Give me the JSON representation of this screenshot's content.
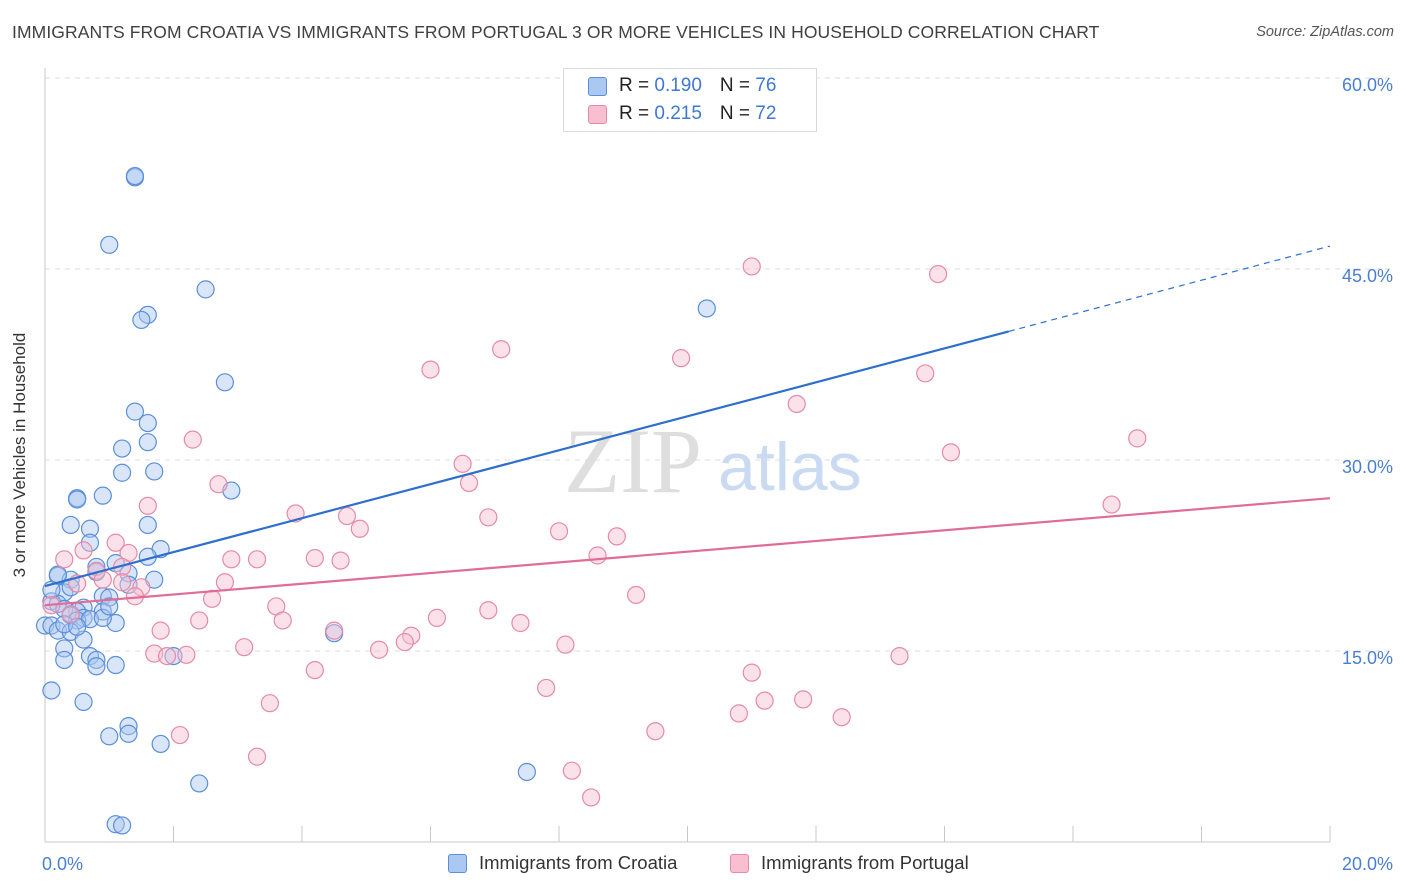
{
  "title": "IMMIGRANTS FROM CROATIA VS IMMIGRANTS FROM PORTUGAL 3 OR MORE VEHICLES IN HOUSEHOLD CORRELATION CHART",
  "source": "Source: ZipAtlas.com",
  "watermark": {
    "zip": "ZIP",
    "atlas": "atlas"
  },
  "colors": {
    "croatia_fill": "#aac8f2",
    "croatia_stroke": "#5b8fd8",
    "croatia_line": "#2f6fcc",
    "portugal_fill": "#f7bfd0",
    "portugal_stroke": "#e58aa8",
    "portugal_line": "#e06d97",
    "tick_label": "#4a7fd0",
    "grid": "#dcdcdc"
  },
  "legend": {
    "croatia": {
      "r_label": "R = ",
      "r_value": "0.190",
      "n_label": "N = ",
      "n_value": "76"
    },
    "portugal": {
      "r_label": "R = ",
      "r_value": "0.215",
      "n_label": "N = ",
      "n_value": "72"
    }
  },
  "chart_data": {
    "type": "scatter",
    "title": "IMMIGRANTS FROM CROATIA VS IMMIGRANTS FROM PORTUGAL 3 OR MORE VEHICLES IN HOUSEHOLD CORRELATION CHART",
    "xlabel": "",
    "ylabel": "3 or more Vehicles in Household",
    "xlim": [
      0,
      20
    ],
    "ylim": [
      0,
      60
    ],
    "x_tick_labels": [
      "0.0%",
      "20.0%"
    ],
    "y_ticks": [
      15,
      30,
      45,
      60
    ],
    "y_tick_labels": [
      "15.0%",
      "30.0%",
      "45.0%",
      "60.0%"
    ],
    "grid": true,
    "legend_position": "top-center",
    "series": [
      {
        "name": "Immigrants from Croatia",
        "r": 0.19,
        "n": 76,
        "trend": {
          "x": [
            0,
            15
          ],
          "y": [
            20.1,
            40.1
          ],
          "extended_to": [
            20,
            46.8
          ]
        },
        "points": [
          [
            1.4,
            52.2
          ],
          [
            1.4,
            52.3
          ],
          [
            1.0,
            46.9
          ],
          [
            2.5,
            43.4
          ],
          [
            1.6,
            41.4
          ],
          [
            1.5,
            41.0
          ],
          [
            10.3,
            41.9
          ],
          [
            2.8,
            36.1
          ],
          [
            1.4,
            33.8
          ],
          [
            1.6,
            32.9
          ],
          [
            1.6,
            31.4
          ],
          [
            1.2,
            30.9
          ],
          [
            1.7,
            29.1
          ],
          [
            1.2,
            29.0
          ],
          [
            2.9,
            27.6
          ],
          [
            0.9,
            27.2
          ],
          [
            0.5,
            27.0
          ],
          [
            0.5,
            26.9
          ],
          [
            1.6,
            24.9
          ],
          [
            0.4,
            24.9
          ],
          [
            0.7,
            24.6
          ],
          [
            0.7,
            23.5
          ],
          [
            1.8,
            23.0
          ],
          [
            1.6,
            22.4
          ],
          [
            1.1,
            21.9
          ],
          [
            0.8,
            21.2
          ],
          [
            0.2,
            20.9
          ],
          [
            1.3,
            21.1
          ],
          [
            1.7,
            20.6
          ],
          [
            0.4,
            20.6
          ],
          [
            1.3,
            20.2
          ],
          [
            0.3,
            19.6
          ],
          [
            0.9,
            19.3
          ],
          [
            1.0,
            19.2
          ],
          [
            0.1,
            18.9
          ],
          [
            0.2,
            18.7
          ],
          [
            0.6,
            18.4
          ],
          [
            0.5,
            18.1
          ],
          [
            0.3,
            18.3
          ],
          [
            0.9,
            18.1
          ],
          [
            0.4,
            17.8
          ],
          [
            0.6,
            17.6
          ],
          [
            0.5,
            17.4
          ],
          [
            0.7,
            17.5
          ],
          [
            1.1,
            17.2
          ],
          [
            0.0,
            17.0
          ],
          [
            0.1,
            17.0
          ],
          [
            0.2,
            16.6
          ],
          [
            0.4,
            16.5
          ],
          [
            0.6,
            15.9
          ],
          [
            4.5,
            16.4
          ],
          [
            0.3,
            15.2
          ],
          [
            0.7,
            14.6
          ],
          [
            2.0,
            14.6
          ],
          [
            0.8,
            14.3
          ],
          [
            0.3,
            14.3
          ],
          [
            0.8,
            13.8
          ],
          [
            1.1,
            13.9
          ],
          [
            0.1,
            11.9
          ],
          [
            0.6,
            11.0
          ],
          [
            1.3,
            9.1
          ],
          [
            1.3,
            8.5
          ],
          [
            1.0,
            8.3
          ],
          [
            1.8,
            7.7
          ],
          [
            7.5,
            5.5
          ],
          [
            2.4,
            4.6
          ],
          [
            1.1,
            1.4
          ],
          [
            1.2,
            1.3
          ],
          [
            0.2,
            21.0
          ],
          [
            0.1,
            19.8
          ],
          [
            0.3,
            17.1
          ],
          [
            0.9,
            17.6
          ],
          [
            1.0,
            18.5
          ],
          [
            0.5,
            16.9
          ],
          [
            0.4,
            20.0
          ],
          [
            0.8,
            21.6
          ]
        ]
      },
      {
        "name": "Immigrants from Portugal",
        "r": 0.215,
        "n": 72,
        "trend": {
          "x": [
            0,
            20
          ],
          "y": [
            18.6,
            27.0
          ]
        },
        "points": [
          [
            11.0,
            45.2
          ],
          [
            13.9,
            44.6
          ],
          [
            7.1,
            38.7
          ],
          [
            9.9,
            38.0
          ],
          [
            6.0,
            37.1
          ],
          [
            13.7,
            36.8
          ],
          [
            11.7,
            34.4
          ],
          [
            17.0,
            31.7
          ],
          [
            2.3,
            31.6
          ],
          [
            14.1,
            30.6
          ],
          [
            6.5,
            29.7
          ],
          [
            6.6,
            28.2
          ],
          [
            2.7,
            28.1
          ],
          [
            1.6,
            26.4
          ],
          [
            16.6,
            26.5
          ],
          [
            3.9,
            25.8
          ],
          [
            4.7,
            25.6
          ],
          [
            6.9,
            25.5
          ],
          [
            8.0,
            24.4
          ],
          [
            8.9,
            24.0
          ],
          [
            4.9,
            24.6
          ],
          [
            1.1,
            23.5
          ],
          [
            0.6,
            22.9
          ],
          [
            1.3,
            22.7
          ],
          [
            0.3,
            22.2
          ],
          [
            3.3,
            22.2
          ],
          [
            2.9,
            22.2
          ],
          [
            4.2,
            22.3
          ],
          [
            4.6,
            22.1
          ],
          [
            8.6,
            22.5
          ],
          [
            1.2,
            21.6
          ],
          [
            0.8,
            21.3
          ],
          [
            0.9,
            20.6
          ],
          [
            1.2,
            20.4
          ],
          [
            2.8,
            20.4
          ],
          [
            1.5,
            20.0
          ],
          [
            0.5,
            20.3
          ],
          [
            1.4,
            19.3
          ],
          [
            2.6,
            19.1
          ],
          [
            9.2,
            19.4
          ],
          [
            0.1,
            18.6
          ],
          [
            3.6,
            18.5
          ],
          [
            6.9,
            18.2
          ],
          [
            2.4,
            17.4
          ],
          [
            3.7,
            17.4
          ],
          [
            6.1,
            17.6
          ],
          [
            7.4,
            17.2
          ],
          [
            1.8,
            16.6
          ],
          [
            4.5,
            16.6
          ],
          [
            5.7,
            16.2
          ],
          [
            5.6,
            15.7
          ],
          [
            8.1,
            15.5
          ],
          [
            3.1,
            15.3
          ],
          [
            5.2,
            15.1
          ],
          [
            1.7,
            14.8
          ],
          [
            2.2,
            14.7
          ],
          [
            13.3,
            14.6
          ],
          [
            4.2,
            13.5
          ],
          [
            11.0,
            13.3
          ],
          [
            7.8,
            12.1
          ],
          [
            11.2,
            11.1
          ],
          [
            11.8,
            11.2
          ],
          [
            3.5,
            10.9
          ],
          [
            10.8,
            10.1
          ],
          [
            12.4,
            9.8
          ],
          [
            9.5,
            8.7
          ],
          [
            2.1,
            8.4
          ],
          [
            3.3,
            6.7
          ],
          [
            8.2,
            5.6
          ],
          [
            8.5,
            3.5
          ],
          [
            0.4,
            17.9
          ],
          [
            1.9,
            14.6
          ]
        ]
      }
    ]
  },
  "bottom_legend": {
    "croatia": "Immigrants from Croatia",
    "portugal": "Immigrants from Portugal"
  }
}
